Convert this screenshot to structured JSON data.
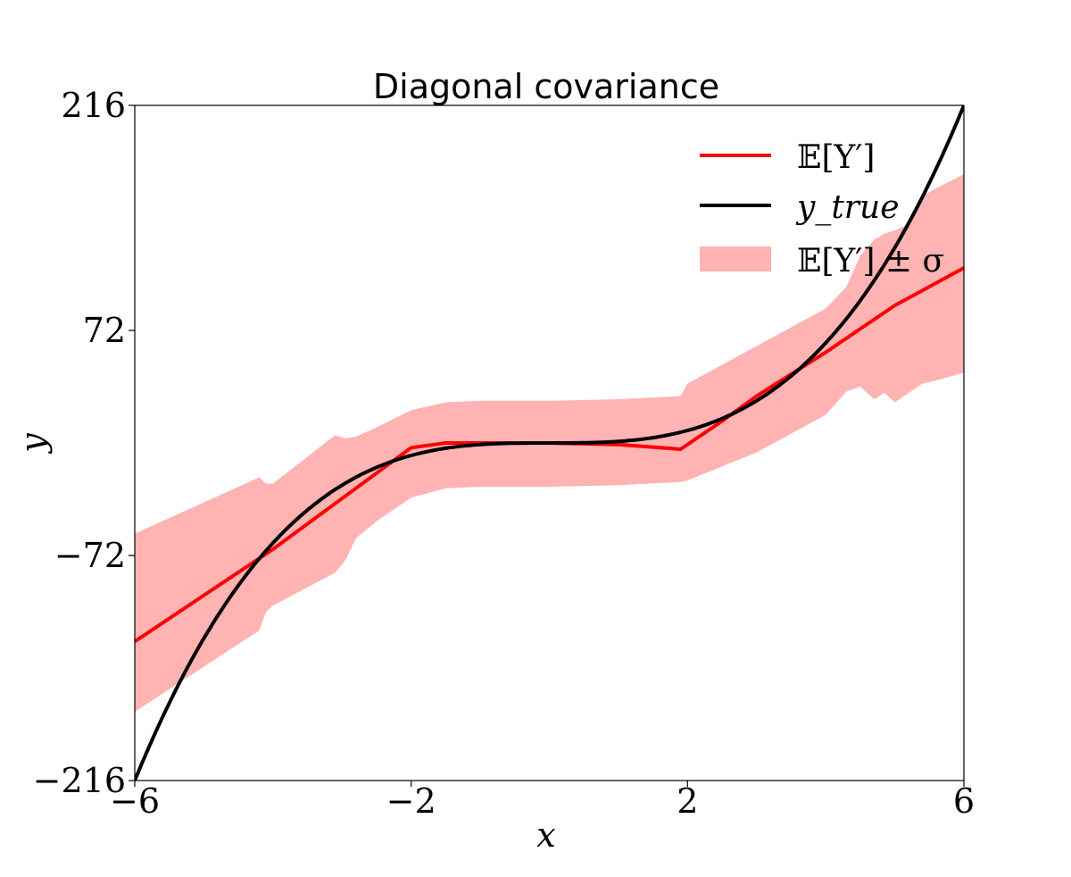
{
  "chart_data": {
    "type": "line",
    "title": "Diagonal covariance",
    "xlabel": "x",
    "ylabel": "y",
    "xlim": [
      -6,
      6
    ],
    "ylim": [
      -216,
      216
    ],
    "xticks": [
      -6,
      -2,
      2,
      6
    ],
    "yticks": [
      -216,
      -72,
      72,
      216
    ],
    "xtick_labels": [
      "−6",
      "−2",
      "2",
      "6"
    ],
    "ytick_labels": [
      "−216",
      "−72",
      "72",
      "216"
    ],
    "grid": false,
    "legend_position": "top-right",
    "legend": {
      "mean_label": "𝔼[Y′]",
      "true_label": "y_true",
      "band_label": "𝔼[Y′] ± σ"
    },
    "series": [
      {
        "name": "𝔼[Y′]",
        "color": "#ff0000",
        "x": [
          -6,
          -4,
          -2,
          -1.5,
          0,
          1,
          1.9,
          2.5,
          3,
          4,
          5,
          6
        ],
        "y": [
          -127,
          -68,
          -3,
          0,
          0,
          -1,
          -4,
          14,
          30,
          58,
          88,
          112
        ]
      },
      {
        "name": "y_true",
        "color": "#000000",
        "function": "x^3",
        "x_range": [
          -6,
          6
        ]
      },
      {
        "name": "𝔼[Y′] ± σ",
        "type": "area",
        "color": "#ffb3b3",
        "x": [
          -6,
          -4.2,
          -4.1,
          -4.0,
          -3.1,
          -2.95,
          -2.8,
          -2.5,
          -2.0,
          -1.5,
          -1.0,
          0,
          1.0,
          1.9,
          2.0,
          3.0,
          4.0,
          4.3,
          4.5,
          4.7,
          4.85,
          5.0,
          5.2,
          5.4,
          5.6,
          6.0
        ],
        "upper": [
          -58,
          -22,
          -26,
          -26,
          5,
          3,
          4,
          10,
          21,
          26,
          27,
          27,
          28,
          30,
          38,
          62,
          86,
          100,
          120,
          130,
          134,
          136,
          140,
          158,
          163,
          172
        ],
        "lower": [
          -172,
          -120,
          -108,
          -104,
          -83,
          -75,
          -61,
          -50,
          -35,
          -29,
          -28,
          -28,
          -27,
          -25,
          -24,
          -6,
          18,
          33,
          36,
          28,
          32,
          26,
          32,
          38,
          40,
          45
        ]
      }
    ]
  }
}
